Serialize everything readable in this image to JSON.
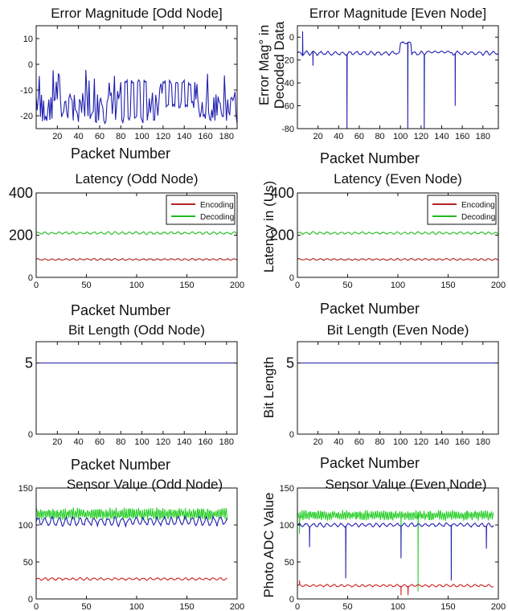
{
  "chart_data": [
    {
      "type": "line",
      "title": "Error Magnitude [Odd Node]",
      "xlabel": "Packet Number",
      "ylabel": "",
      "xlim": [
        0,
        190
      ],
      "ylim": [
        -25,
        15
      ],
      "xticks": [
        20,
        40,
        60,
        80,
        100,
        120,
        140,
        160,
        180
      ],
      "xticklabels": [
        "20",
        "40",
        "60",
        "80",
        "100",
        "120",
        "140",
        "160",
        "180"
      ],
      "yticks": [
        10,
        0,
        -10,
        -20
      ],
      "yticklabels": [
        "10",
        "0",
        "-10",
        "-20"
      ],
      "grid": false,
      "series": [
        {
          "color": "#1f1fb0",
          "pattern": "spiky",
          "range": [
            -23,
            -2
          ],
          "base": -20,
          "x": [
            0,
            190
          ],
          "segments": [
            {
              "x0": 80,
              "x1": 105,
              "lo": -23,
              "hi": -7
            },
            {
              "x0": 120,
              "x1": 150,
              "lo": -17,
              "hi": -7
            }
          ]
        }
      ]
    },
    {
      "type": "line",
      "title": "Error Magnitude [Even Node]",
      "xlabel": "Packet Number",
      "ylabel": "Error Mag° in\nDecoded Data",
      "xlim": [
        0,
        195
      ],
      "ylim": [
        -80,
        10
      ],
      "xticks": [
        20,
        40,
        60,
        80,
        100,
        120,
        140,
        160,
        180
      ],
      "xticklabels": [
        "20",
        "40",
        "60",
        "80",
        "100",
        "120",
        "140",
        "160",
        "180"
      ],
      "yticks": [
        0,
        -20,
        -40,
        -60,
        -80
      ],
      "yticklabels": [
        "0",
        "-20",
        "-40",
        "-60",
        "-80"
      ],
      "grid": false,
      "series": [
        {
          "color": "#1f1fb0",
          "pattern": "wavy",
          "base": -14,
          "amp": 2,
          "x": [
            0,
            195
          ],
          "spikes": [
            {
              "x": 5,
              "y": 5
            },
            {
              "x": 15,
              "y": -25
            },
            {
              "x": 48,
              "y": -80
            },
            {
              "x": 102,
              "y": -5
            },
            {
              "x": 107,
              "y": -80
            },
            {
              "x": 123,
              "y": -80
            },
            {
              "x": 153,
              "y": -60
            }
          ],
          "plateaus": [
            {
              "x0": 100,
              "x1": 110,
              "y": -5
            },
            {
              "x0": 125,
              "x1": 150,
              "y": -13
            }
          ]
        }
      ]
    },
    {
      "type": "line",
      "title": "Latency (Odd Node)",
      "xlabel": "Packet Number",
      "ylabel": "",
      "xlim": [
        0,
        200
      ],
      "ylim": [
        0,
        400
      ],
      "xticks": [
        0,
        50,
        100,
        150,
        200
      ],
      "xticklabels": [
        "0",
        "50",
        "100",
        "150",
        "200"
      ],
      "yticks": [
        0,
        200,
        400
      ],
      "yticklabels": [
        "0",
        "200",
        "400"
      ],
      "legend": "top-right",
      "grid": false,
      "series": [
        {
          "name": "Encoding",
          "color": "#b22222",
          "pattern": "wavy",
          "base": 85,
          "amp": 5,
          "x": [
            0,
            200
          ]
        },
        {
          "name": "Decoding",
          "color": "#22bb22",
          "pattern": "wavy",
          "base": 210,
          "amp": 7,
          "x": [
            0,
            200
          ]
        }
      ]
    },
    {
      "type": "line",
      "title": "Latency (Even Node)",
      "xlabel": "Packet Number",
      "ylabel": "Latency in (Us)",
      "xlim": [
        0,
        200
      ],
      "ylim": [
        0,
        400
      ],
      "xticks": [
        0,
        50,
        100,
        150,
        200
      ],
      "xticklabels": [
        "0",
        "50",
        "100",
        "150",
        "200"
      ],
      "yticks": [
        0,
        200,
        400
      ],
      "yticklabels": [
        "0",
        "200",
        "400"
      ],
      "legend": "top-right",
      "grid": false,
      "series": [
        {
          "name": "Encoding",
          "color": "#b22222",
          "pattern": "wavy",
          "base": 85,
          "amp": 5,
          "x": [
            0,
            200
          ]
        },
        {
          "name": "Decoding",
          "color": "#22bb22",
          "pattern": "wavy",
          "base": 210,
          "amp": 7,
          "x": [
            0,
            200
          ]
        }
      ]
    },
    {
      "type": "line",
      "title": "Bit Length (Odd Node)",
      "xlabel": "Packet Number",
      "ylabel": "",
      "xlim": [
        0,
        190
      ],
      "ylim": [
        0,
        6.5
      ],
      "xticks": [
        20,
        40,
        60,
        80,
        100,
        120,
        140,
        160,
        180
      ],
      "xticklabels": [
        "20",
        "40",
        "60",
        "80",
        "100",
        "120",
        "140",
        "160",
        "180"
      ],
      "yticks": [
        0,
        5
      ],
      "yticklabels": [
        "0",
        "5"
      ],
      "grid": false,
      "series": [
        {
          "color": "#1f1fb0",
          "pattern": "flat",
          "base": 5,
          "x": [
            0,
            190
          ]
        }
      ]
    },
    {
      "type": "line",
      "title": "Bit Length (Even Node)",
      "xlabel": "Packet Number",
      "ylabel": "Bit Length",
      "xlim": [
        0,
        195
      ],
      "ylim": [
        0,
        6.5
      ],
      "xticks": [
        20,
        40,
        60,
        80,
        100,
        120,
        140,
        160,
        180
      ],
      "xticklabels": [
        "20",
        "40",
        "60",
        "80",
        "100",
        "120",
        "140",
        "160",
        "180"
      ],
      "yticks": [
        0,
        5
      ],
      "yticklabels": [
        "0",
        "5"
      ],
      "grid": false,
      "series": [
        {
          "color": "#1f1fb0",
          "pattern": "flat",
          "base": 5,
          "x": [
            0,
            195
          ]
        }
      ]
    },
    {
      "type": "line",
      "title": "Sensor Value (Odd Node)",
      "xlabel": "",
      "ylabel": "",
      "xlim": [
        0,
        200
      ],
      "ylim": [
        0,
        150
      ],
      "xticks": [
        0,
        50,
        100,
        150,
        200
      ],
      "xticklabels": [
        "0",
        "50",
        "100",
        "150",
        "200"
      ],
      "yticks": [
        0,
        50,
        100,
        150
      ],
      "yticklabels": [
        "0",
        "50",
        "100",
        "150"
      ],
      "grid": false,
      "series": [
        {
          "color": "#22cc22",
          "pattern": "dense",
          "base": 115,
          "amp": 6,
          "x": [
            0,
            190
          ]
        },
        {
          "color": "#1f1fb0",
          "pattern": "wavy",
          "base": 105,
          "amp": 7,
          "x": [
            0,
            190
          ]
        },
        {
          "color": "#cc2222",
          "pattern": "wavy",
          "base": 27,
          "amp": 2,
          "x": [
            0,
            190
          ]
        }
      ]
    },
    {
      "type": "line",
      "title": "Sensor Value (Even Node)",
      "xlabel": "",
      "ylabel": "Photo ADC Value",
      "xlim": [
        0,
        200
      ],
      "ylim": [
        0,
        150
      ],
      "xticks": [
        0,
        50,
        100,
        150,
        200
      ],
      "xticklabels": [
        "0",
        "50",
        "100",
        "150",
        "200"
      ],
      "yticks": [
        0,
        50,
        100,
        150
      ],
      "yticklabels": [
        "0",
        "50",
        "100",
        "150"
      ],
      "grid": false,
      "series": [
        {
          "color": "#22cc22",
          "pattern": "dense",
          "base": 113,
          "amp": 5,
          "x": [
            0,
            195
          ],
          "dips": [
            {
              "x": 2,
              "y": 88
            },
            {
              "x": 103,
              "y": 88
            },
            {
              "x": 120,
              "y": 10
            }
          ]
        },
        {
          "color": "#1f1fb0",
          "pattern": "wavy",
          "base": 100,
          "amp": 3,
          "x": [
            0,
            195
          ],
          "spikes": [
            {
              "x": 12,
              "y": 70
            },
            {
              "x": 48,
              "y": 28
            },
            {
              "x": 103,
              "y": 55
            },
            {
              "x": 153,
              "y": 25
            },
            {
              "x": 188,
              "y": 68
            }
          ]
        },
        {
          "color": "#cc2222",
          "pattern": "wavy",
          "base": 18,
          "amp": 2,
          "x": [
            0,
            195
          ],
          "dips": [
            {
              "x": 2,
              "y": 25
            },
            {
              "x": 103,
              "y": 5
            },
            {
              "x": 110,
              "y": 5
            }
          ]
        }
      ]
    }
  ]
}
